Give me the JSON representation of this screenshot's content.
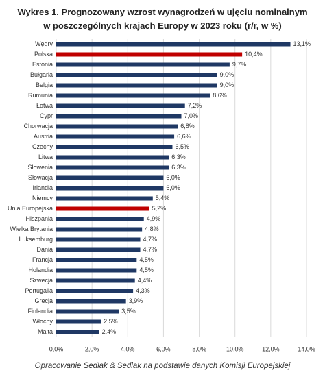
{
  "chart_data": {
    "type": "hbar",
    "title": "Wykres 1. Prognozowany wzrost wynagrodzeń w ujęciu nominalnym w poszczególnych krajach Europy w 2023 roku (r/r, w %)",
    "categories": [
      "Węgry",
      "Polska",
      "Estonia",
      "Bułgaria",
      "Belgia",
      "Rumunia",
      "Łotwa",
      "Cypr",
      "Chorwacja",
      "Austria",
      "Czechy",
      "Litwa",
      "Słowenia",
      "Słowacja",
      "Irlandia",
      "Niemcy",
      "Unia Europejska",
      "Hiszpania",
      "Wielka Brytania",
      "Luksemburg",
      "Dania",
      "Francja",
      "Holandia",
      "Szwecja",
      "Portugalia",
      "Grecja",
      "Finlandia",
      "Włochy",
      "Malta"
    ],
    "values": [
      13.1,
      10.4,
      9.7,
      9.0,
      9.0,
      8.6,
      7.2,
      7.0,
      6.8,
      6.6,
      6.5,
      6.3,
      6.3,
      6.0,
      6.0,
      5.4,
      5.2,
      4.9,
      4.8,
      4.7,
      4.7,
      4.5,
      4.5,
      4.4,
      4.3,
      3.9,
      3.5,
      2.5,
      2.4
    ],
    "value_labels": [
      "13,1%",
      "10,4%",
      "9,7%",
      "9,0%",
      "9,0%",
      "8,6%",
      "7,2%",
      "7,0%",
      "6,8%",
      "6,6%",
      "6,5%",
      "6,3%",
      "6,3%",
      "6,0%",
      "6,0%",
      "5,4%",
      "5,2%",
      "4,9%",
      "4,8%",
      "4,7%",
      "4,7%",
      "4,5%",
      "4,5%",
      "4,4%",
      "4,3%",
      "3,9%",
      "3,5%",
      "2,5%",
      "2,4%"
    ],
    "colors": [
      "#1f3864",
      "#c00000",
      "#1f3864",
      "#1f3864",
      "#1f3864",
      "#1f3864",
      "#1f3864",
      "#1f3864",
      "#1f3864",
      "#1f3864",
      "#1f3864",
      "#1f3864",
      "#1f3864",
      "#1f3864",
      "#1f3864",
      "#1f3864",
      "#c00000",
      "#1f3864",
      "#1f3864",
      "#1f3864",
      "#1f3864",
      "#1f3864",
      "#1f3864",
      "#1f3864",
      "#1f3864",
      "#1f3864",
      "#1f3864",
      "#1f3864",
      "#1f3864"
    ],
    "xlim": [
      0,
      14
    ],
    "xticks": [
      {
        "value": 0,
        "label": "0,0%"
      },
      {
        "value": 2,
        "label": "2,0%"
      },
      {
        "value": 4,
        "label": "4,0%"
      },
      {
        "value": 6,
        "label": "6,0%"
      },
      {
        "value": 8,
        "label": "8,0%"
      },
      {
        "value": 10,
        "label": "10,0%"
      },
      {
        "value": 12,
        "label": "12,0%"
      },
      {
        "value": 14,
        "label": "14,0%"
      }
    ],
    "grid": true,
    "source": "Opracowanie Sedlak & Sedlak na podstawie danych Komisji Europejskiej"
  }
}
